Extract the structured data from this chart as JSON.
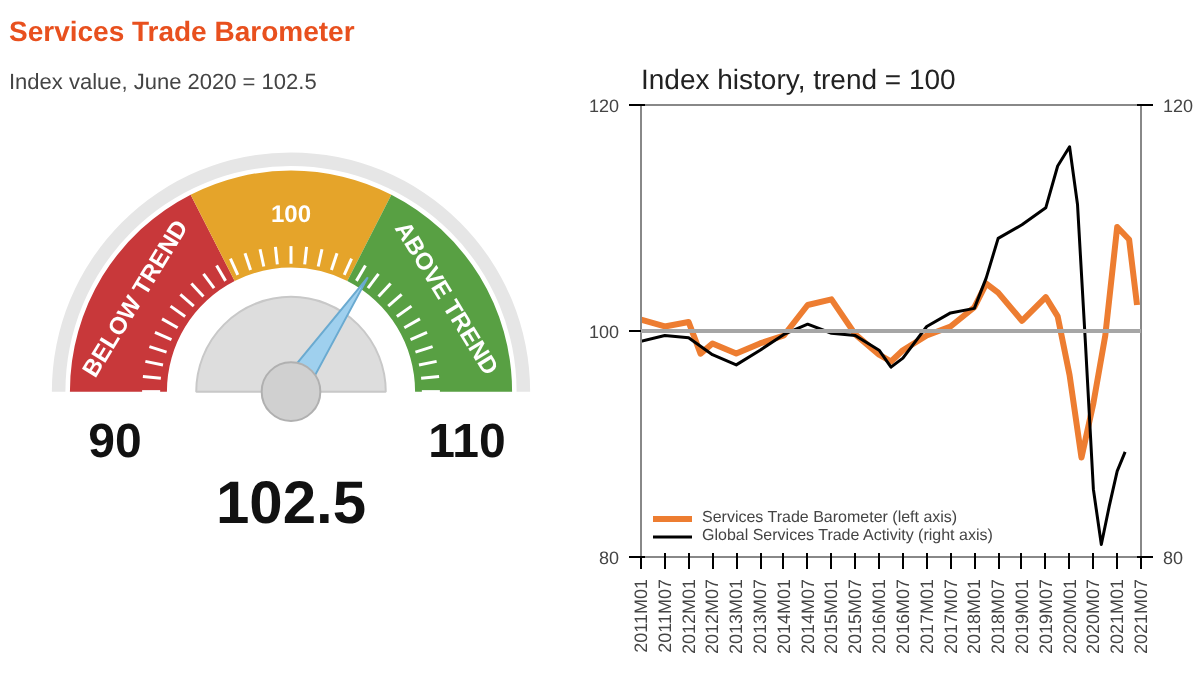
{
  "chart_data": [
    {
      "type": "donut",
      "title": "Services Trade Barometer",
      "subtitle": "Index value, June 2020 = 102.5",
      "categories": [
        "BELOW TREND",
        "100",
        "ABOVE TREND"
      ],
      "values": [
        35,
        30,
        35
      ],
      "colors": [
        "#c8383a",
        "#e5a42a",
        "#58a043"
      ],
      "needle": "ABOVE TREND",
      "annotations": [
        "90",
        "110",
        "102.5"
      ]
    },
    {
      "type": "line",
      "title": "Index history, trend = 100",
      "ylim": [
        80,
        120
      ],
      "yticks": [
        80,
        100,
        120
      ],
      "y2lim": [
        80,
        120
      ],
      "y2ticks": [
        80,
        120
      ],
      "xlim": [
        "2011-01",
        "2021-07"
      ],
      "xticks": [
        {
          "value": "2011-01",
          "label": "2011M01"
        },
        {
          "value": "2011-07",
          "label": "2011M07"
        },
        {
          "value": "2012-01",
          "label": "2012M01"
        },
        {
          "value": "2012-07",
          "label": "2012M07"
        },
        {
          "value": "2013-01",
          "label": "2013M01"
        },
        {
          "value": "2013-07",
          "label": "2013M07"
        },
        {
          "value": "2014-01",
          "label": "2014M01"
        },
        {
          "value": "2014-07",
          "label": "2014M07"
        },
        {
          "value": "2015-01",
          "label": "2015M01"
        },
        {
          "value": "2015-07",
          "label": "2015M07"
        },
        {
          "value": "2016-01",
          "label": "2016M01"
        },
        {
          "value": "2016-07",
          "label": "2016M07"
        },
        {
          "value": "2017-01",
          "label": "2017M01"
        },
        {
          "value": "2017-07",
          "label": "2017M07"
        },
        {
          "value": "2018-01",
          "label": "2018M01"
        },
        {
          "value": "2018-07",
          "label": "2018M07"
        },
        {
          "value": "2019-01",
          "label": "2019M01"
        },
        {
          "value": "2019-07",
          "label": "2019M07"
        },
        {
          "value": "2020-01",
          "label": "2020M01"
        },
        {
          "value": "2020-07",
          "label": "2020M07"
        },
        {
          "value": "2021-01",
          "label": "2021M01"
        },
        {
          "value": "2021-07",
          "label": "2021M07"
        }
      ],
      "ref_lines": [
        {
          "axis": "y",
          "value": 100,
          "color": "#a6a6a6"
        }
      ],
      "legend": "bottom left",
      "grid": false,
      "series": [
        {
          "name": "Services Trade Barometer (left axis)",
          "color": "#ed7d31",
          "x": [
            "2011-01",
            "2011-07",
            "2012-01",
            "2012-04",
            "2012-07",
            "2013-01",
            "2013-07",
            "2014-01",
            "2014-07",
            "2015-01",
            "2015-07",
            "2016-01",
            "2016-04",
            "2016-07",
            "2017-01",
            "2017-07",
            "2018-01",
            "2018-04",
            "2018-07",
            "2019-01",
            "2019-07",
            "2019-10",
            "2020-01",
            "2020-04",
            "2020-07",
            "2020-10",
            "2021-01",
            "2021-04",
            "2021-06"
          ],
          "values": [
            101.0,
            100.4,
            100.8,
            98.0,
            98.9,
            98.0,
            98.9,
            99.6,
            102.3,
            102.8,
            99.7,
            97.9,
            97.3,
            98.3,
            99.6,
            100.4,
            102.1,
            104.2,
            103.4,
            100.9,
            103.0,
            101.3,
            96.1,
            88.8,
            93.6,
            99.6,
            109.2,
            108.1,
            102.3
          ]
        },
        {
          "name": "Global Services Trade Activity (right axis)",
          "color": "#000000",
          "axis": "y2",
          "x": [
            "2011-01",
            "2011-07",
            "2012-01",
            "2012-07",
            "2013-01",
            "2013-07",
            "2014-01",
            "2014-07",
            "2015-01",
            "2015-07",
            "2016-01",
            "2016-04",
            "2016-07",
            "2017-01",
            "2017-07",
            "2018-01",
            "2018-04",
            "2018-07",
            "2019-01",
            "2019-07",
            "2019-10",
            "2020-01",
            "2020-03",
            "2020-05",
            "2020-07",
            "2020-09",
            "2020-11",
            "2021-01",
            "2021-03"
          ],
          "values": [
            99.1,
            99.6,
            99.4,
            97.9,
            97.0,
            98.3,
            99.7,
            100.6,
            99.8,
            99.6,
            98.3,
            96.8,
            97.6,
            100.4,
            101.6,
            102.0,
            104.7,
            108.2,
            109.4,
            110.9,
            114.6,
            116.3,
            111.2,
            98.9,
            86.0,
            81.1,
            84.5,
            87.6,
            89.3
          ]
        }
      ]
    }
  ]
}
